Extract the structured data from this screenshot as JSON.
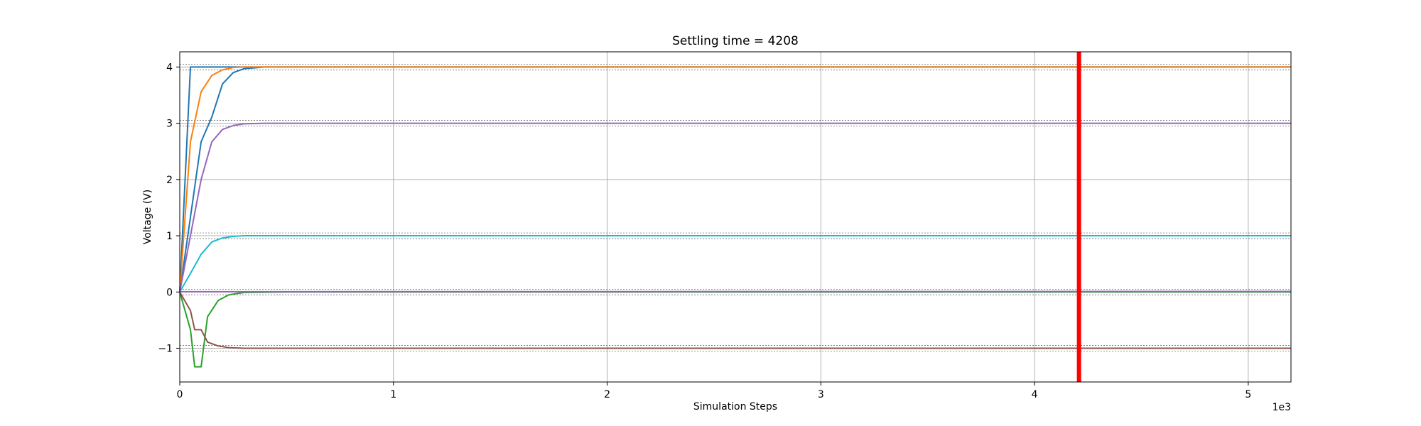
{
  "chart_data": {
    "type": "line",
    "title": "Settling time = 4208",
    "xlabel": "Simulation Steps",
    "ylabel": "Voltage (V)",
    "x_offset_label": "1e3",
    "xlim": [
      0,
      5.2
    ],
    "ylim": [
      -1.6,
      4.27
    ],
    "xticks": [
      0,
      1,
      2,
      3,
      4,
      5
    ],
    "yticks": [
      -1,
      0,
      1,
      2,
      3,
      4
    ],
    "xtick_labels": [
      "0",
      "1",
      "2",
      "3",
      "4",
      "5"
    ],
    "ytick_labels": [
      "−1",
      "0",
      "1",
      "2",
      "3",
      "4"
    ],
    "grid": true,
    "settling_marker": {
      "x": 4.208,
      "color": "#ff0000"
    },
    "target_levels": [
      4,
      3,
      1,
      0,
      -1
    ],
    "series": [
      {
        "color": "#1f77b4",
        "x": [
          0,
          0.05,
          1.5,
          5.2
        ],
        "y": [
          0,
          4,
          4,
          4
        ]
      },
      {
        "color": "#17becf",
        "x": [
          0,
          0.05,
          0.05,
          0.1,
          0.1,
          0.15,
          0.15,
          0.2,
          0.2,
          0.25,
          0.25,
          0.3,
          0.4,
          5.2
        ],
        "y": [
          0,
          0.33,
          0.33,
          0.67,
          0.67,
          0.89,
          0.89,
          0.96,
          0.96,
          0.99,
          0.99,
          1.0,
          1.0,
          1.0
        ]
      },
      {
        "color": "#1f77b4",
        "x": [
          0,
          0.05,
          0.05,
          0.1,
          0.1,
          0.15,
          0.15,
          0.2,
          0.2,
          0.25,
          0.25,
          0.3,
          0.4,
          5.2
        ],
        "y": [
          0,
          1.33,
          1.33,
          2.67,
          2.67,
          3.11,
          3.11,
          3.7,
          3.7,
          3.9,
          3.9,
          3.97,
          4.0,
          4.0
        ]
      },
      {
        "color": "#ff7f0e",
        "x": [
          0,
          0.05,
          0.05,
          0.1,
          0.1,
          0.15,
          0.15,
          0.2,
          0.2,
          0.25,
          0.25,
          0.3,
          0.4,
          5.2
        ],
        "y": [
          0,
          2.67,
          2.67,
          3.56,
          3.56,
          3.85,
          3.85,
          3.95,
          3.95,
          3.99,
          3.99,
          4.0,
          4.0,
          4.0
        ]
      },
      {
        "color": "#9467bd",
        "x": [
          0,
          0.05,
          0.05,
          0.1,
          0.1,
          0.15,
          0.15,
          0.2,
          0.2,
          0.25,
          0.25,
          0.3,
          0.4,
          5.2
        ],
        "y": [
          0,
          1.0,
          1.0,
          2.0,
          2.0,
          2.67,
          2.67,
          2.89,
          2.89,
          2.96,
          2.96,
          2.99,
          3.0,
          3.0
        ]
      },
      {
        "color": "#2ca02c",
        "x": [
          0,
          0.05,
          0.07,
          0.07,
          0.1,
          0.13,
          0.13,
          0.18,
          0.18,
          0.23,
          0.23,
          0.3,
          0.5,
          5.2
        ],
        "y": [
          0,
          -0.67,
          -1.33,
          -1.33,
          -1.33,
          -0.44,
          -0.44,
          -0.15,
          -0.15,
          -0.05,
          -0.05,
          -0.01,
          0.0,
          0.0
        ]
      },
      {
        "color": "#8c564b",
        "x": [
          0,
          0.05,
          0.07,
          0.07,
          0.1,
          0.13,
          0.13,
          0.18,
          0.18,
          0.23,
          0.23,
          0.3,
          0.5,
          5.2
        ],
        "y": [
          0,
          -0.33,
          -0.67,
          -0.67,
          -0.67,
          -0.89,
          -0.89,
          -0.96,
          -0.96,
          -0.99,
          -0.99,
          -1.0,
          -1.0,
          -1.0
        ]
      },
      {
        "color": "#9467bd",
        "x": [
          0,
          5.2
        ],
        "y": [
          0.005,
          0.01
        ]
      }
    ]
  }
}
